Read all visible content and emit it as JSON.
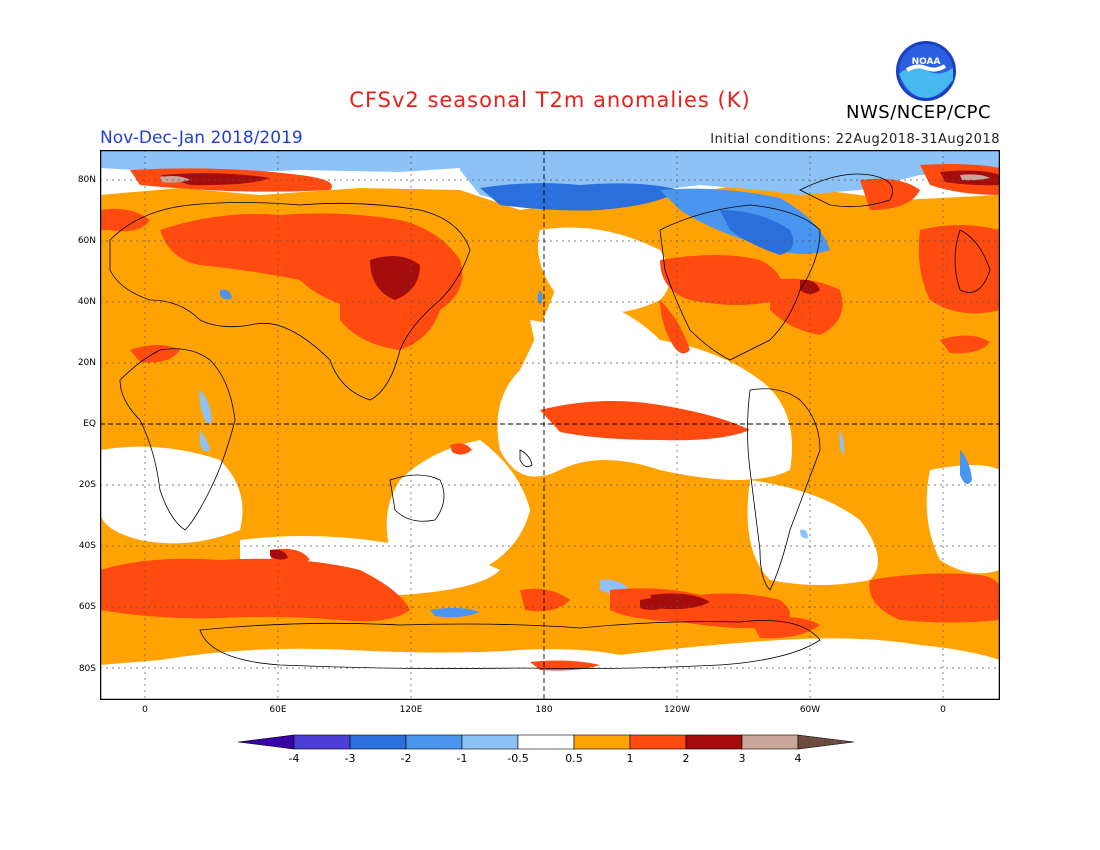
{
  "header": {
    "title": "CFSv2 seasonal T2m anomalies (K)",
    "period": "Nov-Dec-Jan 2018/2019",
    "initial_conditions": "Initial conditions: 22Aug2018-31Aug2018",
    "agency": "NWS/NCEP/CPC",
    "logo_text": "NOAA"
  },
  "map": {
    "lat_labels": [
      "80N",
      "60N",
      "40N",
      "20N",
      "EQ",
      "20S",
      "40S",
      "60S",
      "80S"
    ],
    "lon_labels": [
      "0",
      "60E",
      "120E",
      "180",
      "120W",
      "60W",
      "0"
    ]
  },
  "colorbar": {
    "labels": [
      "-4",
      "-3",
      "-2",
      "-1",
      "-0.5",
      "0.5",
      "1",
      "2",
      "3",
      "4"
    ],
    "colors": [
      "#3a00a8",
      "#4b3fd6",
      "#2a6fdb",
      "#4a95f0",
      "#8cc2f5",
      "#ffffff",
      "#ffa305",
      "#ff4a10",
      "#a50c0c",
      "#c9a59a",
      "#6f4a3f"
    ]
  }
}
